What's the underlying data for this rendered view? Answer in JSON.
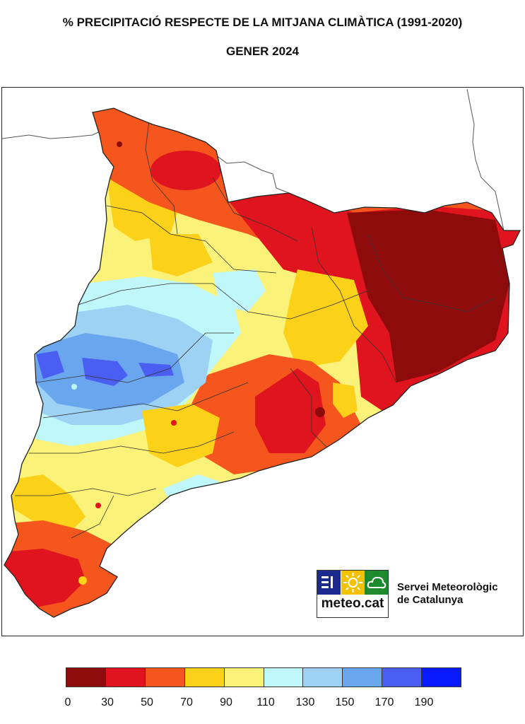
{
  "header": {
    "title": "% PRECIPITACIÓ RESPECTE DE LA MITJANA CLIMÀTICA (1991-2020)",
    "subtitle": "GENER 2024"
  },
  "branding": {
    "logo_text": "meteo.cat",
    "org_line1": "Servei Meteorològic",
    "org_line2": "de Catalunya",
    "logo_colors": [
      "#1b2a8c",
      "#f2c200",
      "#1d8a2e"
    ]
  },
  "legend": {
    "ticks": [
      "0",
      "30",
      "50",
      "70",
      "90",
      "110",
      "130",
      "150",
      "170",
      "190"
    ],
    "colors": [
      "#8e0b0b",
      "#e0141e",
      "#f4561d",
      "#fcd11a",
      "#fbf27a",
      "#bff7fa",
      "#9ed2f5",
      "#6aa6ee",
      "#4a5ef2",
      "#0a1aff"
    ]
  },
  "map_icons": [
    "catalonia-map",
    "county-boundaries",
    "coastline"
  ]
}
